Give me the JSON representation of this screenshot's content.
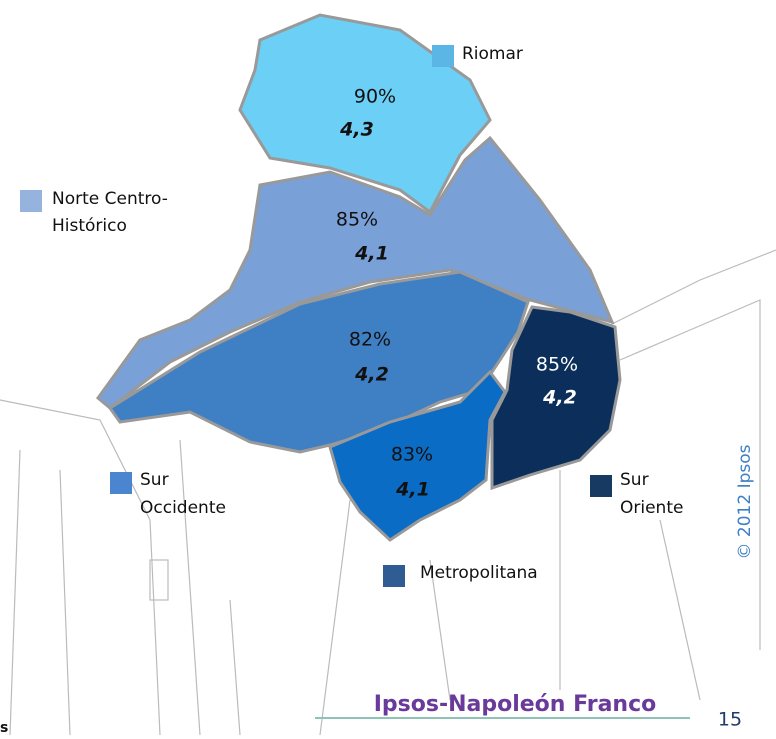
{
  "regions": [
    {
      "name": "Riomar",
      "percent": "90%",
      "score": "4,3"
    },
    {
      "name": "Norte Centro-",
      "name2": "Histórico",
      "percent": "85%",
      "score": "4,1"
    },
    {
      "name": "Sur",
      "name2": "Occidente",
      "percent": "82%",
      "score": "4,2"
    },
    {
      "name": "Metropolitana",
      "percent": "83%",
      "score": "4,1"
    },
    {
      "name": "Sur",
      "name2": "Oriente",
      "percent": "85%",
      "score": "4,2"
    }
  ],
  "footer": {
    "brand": "Ipsos-Napoleón Franco",
    "page": "15",
    "copyright": "© 2012 Ipsos",
    "fragment": "s"
  }
}
